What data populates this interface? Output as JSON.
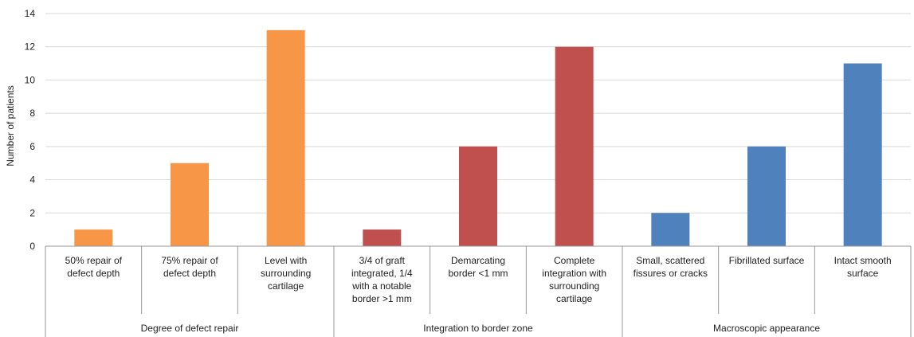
{
  "chart_data": {
    "type": "bar",
    "title": "",
    "ylabel": "Number of patients",
    "xlabel": "",
    "ylim": [
      0,
      14
    ],
    "yticks": [
      0,
      2,
      4,
      6,
      8,
      10,
      12,
      14
    ],
    "grid": true,
    "legend": "none",
    "groups": [
      {
        "label": "Degree of defect repair",
        "color": "#F79646",
        "categories": [
          {
            "lines": [
              "50% repair of",
              "defect depth"
            ],
            "value": 1
          },
          {
            "lines": [
              "75% repair of",
              "defect depth"
            ],
            "value": 5
          },
          {
            "lines": [
              "Level with",
              "surrounding",
              "cartilage"
            ],
            "value": 13
          }
        ]
      },
      {
        "label": "Integration to border zone",
        "color": "#C0504D",
        "categories": [
          {
            "lines": [
              "3/4 of graft",
              "integrated, 1/4",
              "with a notable",
              "border >1 mm"
            ],
            "value": 1
          },
          {
            "lines": [
              "Demarcating",
              "border <1 mm"
            ],
            "value": 6
          },
          {
            "lines": [
              "Complete",
              "integration with",
              "surrounding",
              "cartilage"
            ],
            "value": 12
          }
        ]
      },
      {
        "label": "Macroscopic appearance",
        "color": "#4F81BD",
        "categories": [
          {
            "lines": [
              "Small, scattered",
              "fissures or cracks"
            ],
            "value": 2
          },
          {
            "lines": [
              "Fibrillated surface"
            ],
            "value": 6
          },
          {
            "lines": [
              "Intact smooth",
              "surface"
            ],
            "value": 11
          }
        ]
      }
    ]
  }
}
